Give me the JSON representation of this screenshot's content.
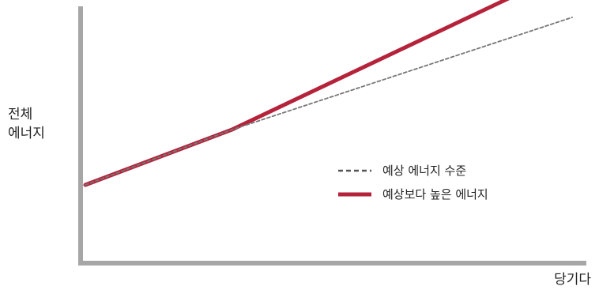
{
  "chart_data": {
    "type": "line",
    "title": "",
    "ylabel": [
      "전체",
      "에너지"
    ],
    "xlabel": "당기다",
    "xlim": [
      0,
      10
    ],
    "ylim": [
      0,
      10
    ],
    "grid": false,
    "legend_position": "center-right",
    "series": [
      {
        "name": "예상 에너지 수준",
        "style": "dashed",
        "color": "#777777",
        "points": [
          [
            0,
            3.0
          ],
          [
            3.0,
            5.3
          ],
          [
            10,
            10.0
          ]
        ]
      },
      {
        "name": "예상보다 높은 에너지",
        "style": "solid",
        "color": "#b5233b",
        "points": [
          [
            0,
            3.0
          ],
          [
            3.0,
            5.3
          ],
          [
            8.7,
            10.8
          ]
        ]
      }
    ],
    "colors": {
      "axis": "#a6a6a6",
      "text": "#222222"
    }
  }
}
